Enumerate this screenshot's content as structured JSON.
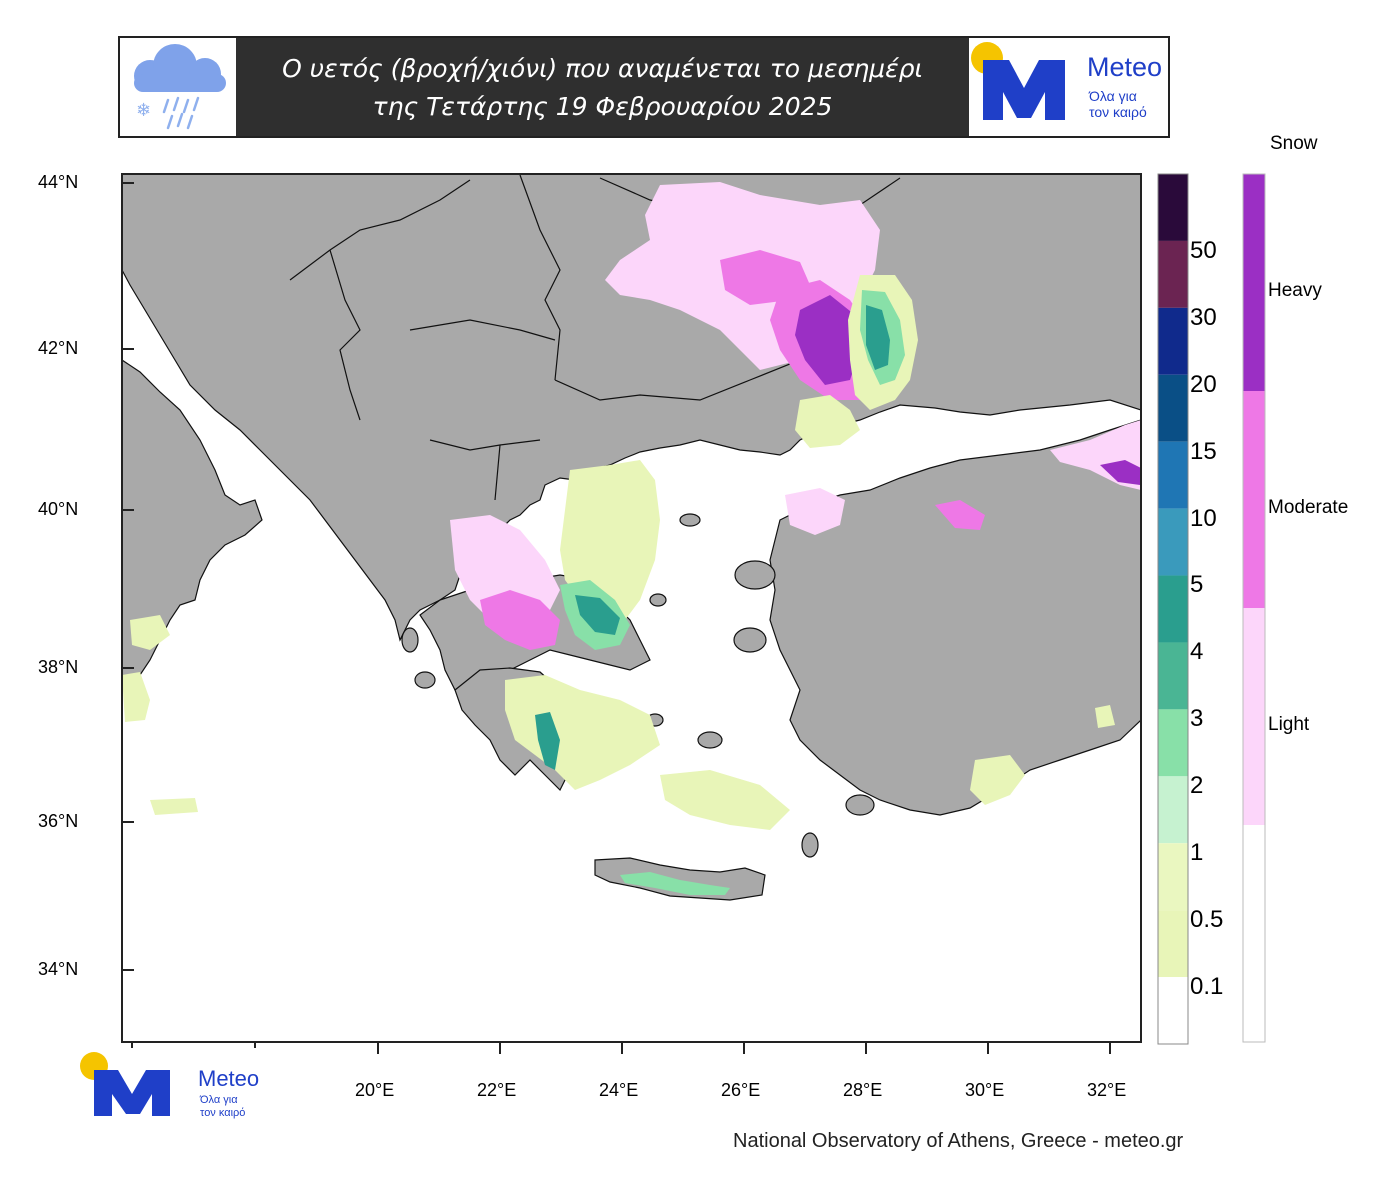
{
  "header": {
    "title_line1": "Ο υετός (βροχή/χιόνι) που αναμένεται το μεσημέρι",
    "title_line2": "της Τετάρτης 19 Φεβρουαρίου  2025",
    "weather_icon": "cloud-rain-snow-icon"
  },
  "logo": {
    "brand": "Meteo",
    "tagline_line1": "Όλα για",
    "tagline_line2": "τον καιρό",
    "sun_color": "#f5c400",
    "brand_color": "#1f3fc8"
  },
  "map": {
    "lat_labels": [
      "44°N",
      "42°N",
      "40°N",
      "38°N",
      "36°N",
      "34°N"
    ],
    "lon_labels": [
      "20°E",
      "22°E",
      "24°E",
      "26°E",
      "28°E",
      "30°E",
      "32°E"
    ],
    "land_color": "#a9a9a9",
    "sea_color": "#ffffff"
  },
  "precip_colorbar": {
    "labels": [
      "50",
      "30",
      "20",
      "15",
      "10",
      "5",
      "4",
      "3",
      "2",
      "1",
      "0.5",
      "0.1"
    ],
    "colors": [
      "#2a0a3a",
      "#6b2452",
      "#102a8c",
      "#0a4f86",
      "#1f76b4",
      "#3a9abc",
      "#2a9e8e",
      "#4ab594",
      "#88e0a8",
      "#c6f2d0",
      "#eaf7c0",
      "#e8f5b8",
      "#ffffff"
    ]
  },
  "snow_colorbar": {
    "title": "Snow",
    "labels": [
      "Heavy",
      "Moderate",
      "Light"
    ],
    "colors": [
      "#9b2fc4",
      "#ee78e6",
      "#fcd6fa",
      "#ffffff"
    ]
  },
  "credit": "National Observatory of Athens, Greece - meteo.gr"
}
